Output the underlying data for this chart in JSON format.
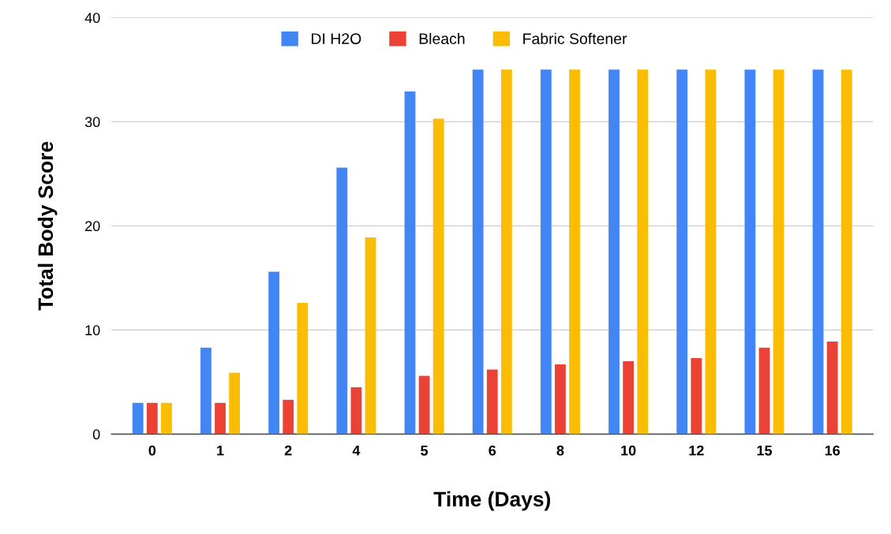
{
  "chart_data": {
    "type": "bar",
    "xlabel": "Time (Days)",
    "ylabel": "Total Body Score",
    "categories": [
      "0",
      "1",
      "2",
      "4",
      "5",
      "6",
      "8",
      "10",
      "12",
      "15",
      "16"
    ],
    "series": [
      {
        "name": "DI H2O",
        "color": "#4285f4",
        "values": [
          3,
          8.3,
          15.6,
          25.6,
          32.9,
          35,
          35,
          35,
          35,
          35,
          35
        ]
      },
      {
        "name": "Bleach",
        "color": "#ea4335",
        "values": [
          3,
          3,
          3.3,
          4.5,
          5.6,
          6.2,
          6.7,
          7.0,
          7.3,
          8.3,
          8.9
        ]
      },
      {
        "name": "Fabric Softener",
        "color": "#fbbc04",
        "values": [
          3,
          5.9,
          12.6,
          18.9,
          30.3,
          35,
          35,
          35,
          35,
          35,
          35
        ]
      }
    ],
    "ylim": [
      0,
      40
    ],
    "yticks": [
      0,
      10,
      20,
      30,
      40
    ],
    "grid": "y",
    "legend": "top"
  }
}
